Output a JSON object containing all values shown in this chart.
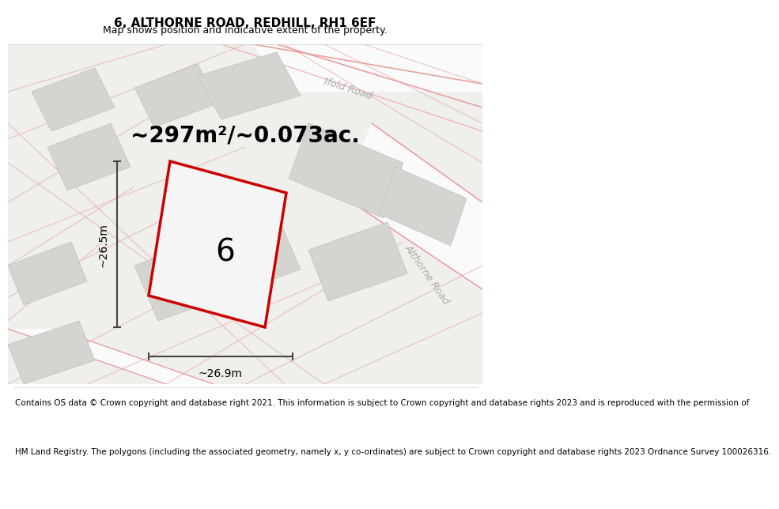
{
  "title": "6, ALTHORNE ROAD, REDHILL, RH1 6EF",
  "subtitle": "Map shows position and indicative extent of the property.",
  "footer_lines": [
    "Contains OS data © Crown copyright and database right 2021. This information is subject to Crown copyright and database rights 2023 and is reproduced with the permission of",
    "HM Land Registry. The polygons (including the associated geometry, namely x, y co-ordinates) are subject to Crown copyright and database rights 2023 Ordnance Survey 100026316."
  ],
  "area_label": "~297m²/~0.073ac.",
  "number_label": "6",
  "dim_width": "~26.9m",
  "dim_height": "~26.5m",
  "map_bg": "#efefeb",
  "plot_fill": "#f5f5f5",
  "plot_outline_color": "#cc0000",
  "building_color": "#d4d4d0",
  "building_edge": "#c0c0bc",
  "road_fill": "#fafafa",
  "road_line_color": "#e8a0a0",
  "dim_color": "#444444",
  "road_label_color": "#aaaaaa",
  "title_fontsize": 11,
  "subtitle_fontsize": 9,
  "footer_fontsize": 7.5,
  "area_fontsize": 20,
  "number_fontsize": 28,
  "dim_fontsize": 10,
  "road_label_fontsize": 9
}
